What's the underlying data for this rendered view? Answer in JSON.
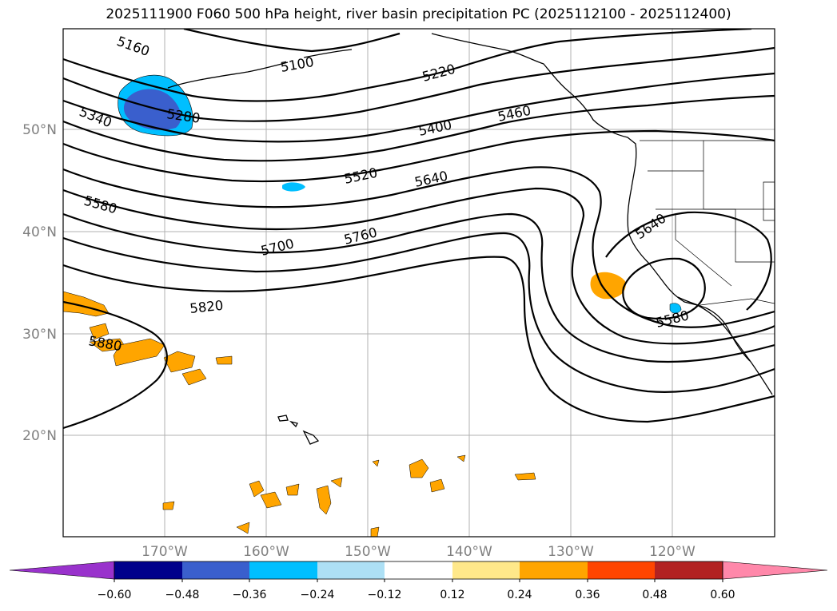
{
  "title": "2025111900 F060 500 hPa height, river basin precipitation PC (2025112100 - 2025112400)",
  "map": {
    "lat_labels": [
      "50°N",
      "40°N",
      "30°N",
      "20°N"
    ],
    "lon_labels": [
      "170°W",
      "160°W",
      "150°W",
      "140°W",
      "130°W",
      "120°W"
    ]
  },
  "contour_labels": [
    "5160",
    "5100",
    "5220",
    "5340",
    "5280",
    "5400",
    "5460",
    "5520",
    "5640",
    "5580",
    "5700",
    "5760",
    "5820",
    "5880",
    "5640",
    "5580"
  ],
  "colorbar": {
    "colors": [
      "#9932CC",
      "#00008B",
      "#3A5FCD",
      "#00BFFF",
      "#ADE0F5",
      "#FFFFFF",
      "#FFE88A",
      "#FFA500",
      "#FF4500",
      "#B22222",
      "#FF88AA"
    ],
    "ticks": [
      "−0.60",
      "−0.48",
      "−0.36",
      "−0.24",
      "−0.12",
      "0.12",
      "0.24",
      "0.36",
      "0.48",
      "0.60"
    ]
  }
}
